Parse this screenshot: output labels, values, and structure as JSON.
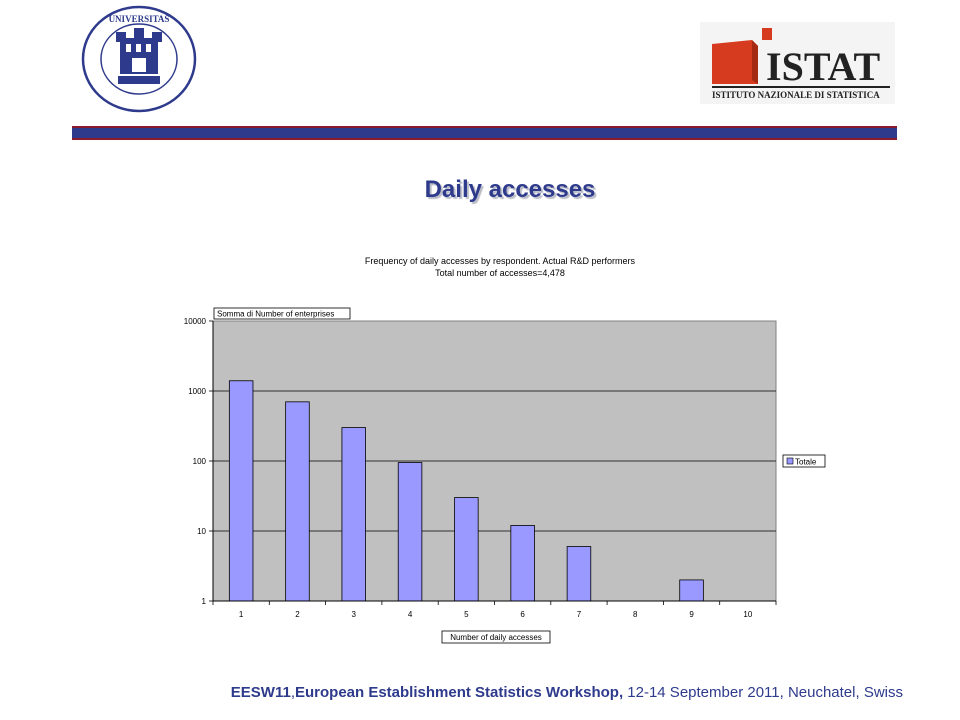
{
  "slide": {
    "title": "Daily accesses",
    "footer": {
      "event": "EESW11",
      "event_sep": ",",
      "workshop": "European Establishment Statistics Workshop,",
      "details": " 12-14 September 2011, Neuchatel, Swiss"
    }
  },
  "logos": {
    "university_seal_text": "UNIVERSITAS",
    "istat_name": "ISTAT",
    "istat_subtitle": "ISTITUTO NAZIONALE DI STATISTICA"
  },
  "colors": {
    "primary": "#2e3a8c",
    "accent_red": "#8b1a2c",
    "plot_bg": "#c0c0c0",
    "bar_fill": "#9999ff",
    "istat_red": "#d63b1f"
  },
  "chart_data": {
    "type": "bar",
    "title": "Frequency of daily accesses by respondent. Actual R&D performers",
    "subtitle": "Total number of accesses=4,478",
    "field_button": "Somma di Number of enterprises",
    "xlabel": "Number of daily accesses",
    "ylabel": "",
    "yscale": "log",
    "ylim": [
      1,
      10000
    ],
    "yticks": [
      "1",
      "10",
      "100",
      "1000",
      "10000"
    ],
    "categories": [
      "1",
      "2",
      "3",
      "4",
      "5",
      "6",
      "7",
      "8",
      "9",
      "10"
    ],
    "series": [
      {
        "name": "Totale",
        "values": [
          1400,
          700,
          300,
          95,
          30,
          12,
          6,
          null,
          2,
          null
        ]
      }
    ],
    "legend_position": "right",
    "grid": true
  }
}
